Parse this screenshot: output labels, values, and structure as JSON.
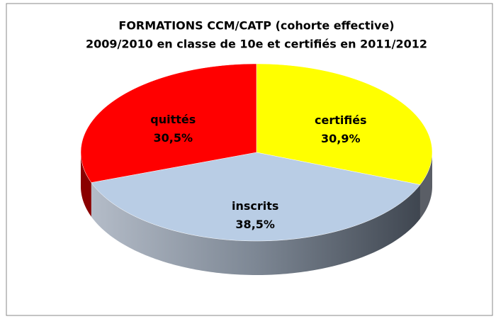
{
  "chart_data": {
    "type": "pie3d",
    "title": [
      "FORMATIONS CCM/CATP (cohorte effective)",
      "2009/2010 en classe de 10e et certifiés en 2011/2012"
    ],
    "categories": [
      "certifiés",
      "inscrits",
      "quittés"
    ],
    "values": [
      30.9,
      38.5,
      30.5
    ],
    "value_labels": [
      "30,9%",
      "38,5%",
      "30,5%"
    ],
    "colors": [
      "#ffff00",
      "#b9cde5",
      "#ff0000"
    ]
  }
}
